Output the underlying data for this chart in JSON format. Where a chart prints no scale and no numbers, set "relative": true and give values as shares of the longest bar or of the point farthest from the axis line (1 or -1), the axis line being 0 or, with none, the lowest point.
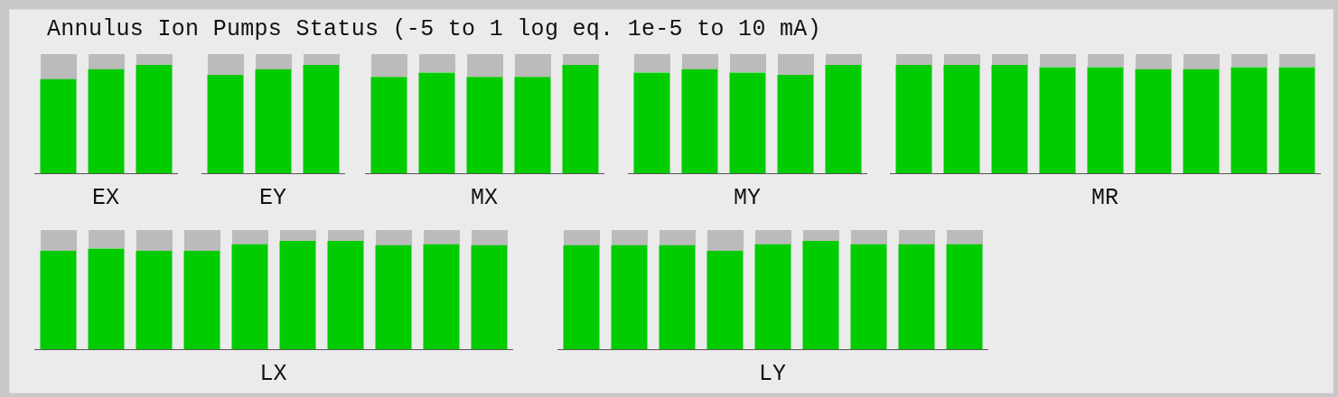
{
  "chart_data": [
    {
      "type": "bar",
      "title": "Annulus Ion Pumps Status (-5 to 1 log eq. 1e-5 to 10 mA)",
      "xlabel": "EX",
      "categories": [
        null,
        null,
        null
      ],
      "values": [
        0.87,
        0.96,
        1
      ],
      "color": "#00cc00",
      "relative": true
    },
    {
      "type": "bar",
      "xlabel": "EY",
      "categories": [
        null,
        null,
        null
      ],
      "values": [
        0.91,
        0.96,
        1
      ],
      "color": "#00cc00",
      "relative": true
    },
    {
      "type": "bar",
      "xlabel": "MX",
      "categories": [
        null,
        null,
        null,
        null,
        null
      ],
      "values": [
        0.89,
        0.93,
        0.89,
        0.89,
        1
      ],
      "color": "#00cc00",
      "relative": true
    },
    {
      "type": "bar",
      "xlabel": "MY",
      "categories": [
        null,
        null,
        null,
        null,
        null
      ],
      "values": [
        0.93,
        0.96,
        0.93,
        0.91,
        1
      ],
      "color": "#00cc00",
      "relative": true
    },
    {
      "type": "bar",
      "xlabel": "MR",
      "categories": [
        null,
        null,
        null,
        null,
        null,
        null,
        null,
        null,
        null
      ],
      "values": [
        1,
        1,
        1,
        0.98,
        0.98,
        0.96,
        0.96,
        0.98,
        0.98
      ],
      "color": "#00cc00",
      "relative": true
    },
    {
      "type": "bar",
      "xlabel": "LX",
      "categories": [
        null,
        null,
        null,
        null,
        null,
        null,
        null,
        null,
        null,
        null
      ],
      "values": [
        0.91,
        0.93,
        0.91,
        0.91,
        0.97,
        1,
        1,
        0.96,
        0.97,
        0.96
      ],
      "color": "#00cc00",
      "relative": true
    },
    {
      "type": "bar",
      "xlabel": "LY",
      "categories": [
        null,
        null,
        null,
        null,
        null,
        null,
        null,
        null,
        null
      ],
      "values": [
        0.96,
        0.96,
        0.96,
        0.91,
        0.97,
        1,
        0.97,
        0.97,
        0.97
      ],
      "color": "#00cc00",
      "relative": true
    }
  ]
}
